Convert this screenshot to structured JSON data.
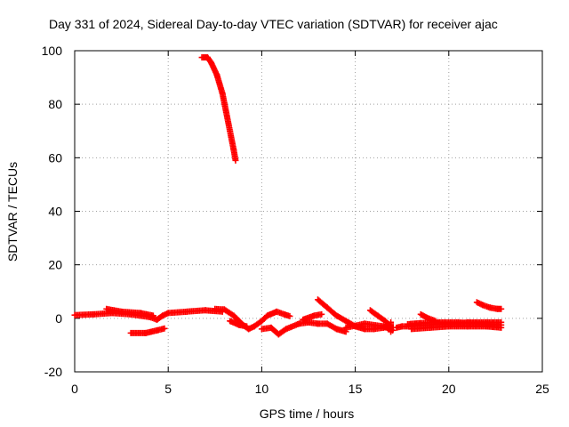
{
  "chart_data": {
    "type": "scatter",
    "title": "Day 331 of 2024, Sidereal Day-to-day VTEC variation (SDTVAR) for receiver ajac",
    "xlabel": "GPS time / hours",
    "ylabel": "SDTVAR / TECUs",
    "xlim": [
      0,
      25
    ],
    "ylim": [
      -20,
      100
    ],
    "xticks": [
      "0",
      "5",
      "10",
      "15",
      "20",
      "25"
    ],
    "yticks": [
      "-20",
      "0",
      "20",
      "40",
      "60",
      "80",
      "100"
    ],
    "grid": true,
    "marker": "plus",
    "series": [
      {
        "color": "#ff0000",
        "segments": [
          [
            [
              0,
              1.2
            ],
            [
              1,
              1.5
            ],
            [
              2,
              2
            ],
            [
              3,
              1.5
            ],
            [
              4,
              0.5
            ],
            [
              4.4,
              -0.5
            ],
            [
              4.7,
              1
            ],
            [
              5,
              2
            ],
            [
              6,
              2.5
            ],
            [
              7,
              3
            ],
            [
              7.9,
              2.5
            ]
          ],
          [
            [
              1.7,
              3.5
            ],
            [
              2.5,
              2.5
            ],
            [
              3.5,
              2
            ],
            [
              4.2,
              1
            ]
          ],
          [
            [
              3,
              -5.5
            ],
            [
              3.8,
              -5.5
            ],
            [
              4.4,
              -4.5
            ],
            [
              4.8,
              -3.8
            ]
          ],
          [
            [
              6.8,
              97.5
            ],
            [
              7.1,
              97.5
            ],
            [
              7.3,
              95.5
            ],
            [
              7.6,
              91
            ],
            [
              7.9,
              84
            ],
            [
              8.1,
              77
            ],
            [
              8.3,
              70
            ],
            [
              8.5,
              63
            ],
            [
              8.6,
              59
            ]
          ],
          [
            [
              7.5,
              3.5
            ],
            [
              8,
              3.3
            ],
            [
              8.5,
              1
            ],
            [
              9,
              -2.5
            ],
            [
              9.3,
              -4
            ],
            [
              9.6,
              -3
            ],
            [
              10,
              -1
            ],
            [
              10.3,
              1
            ],
            [
              10.8,
              2.5
            ],
            [
              11.2,
              1.5
            ],
            [
              11.5,
              0.8
            ]
          ],
          [
            [
              8.3,
              -1
            ],
            [
              8.8,
              -2.5
            ],
            [
              9.2,
              -3
            ]
          ],
          [
            [
              10,
              -4
            ],
            [
              10.5,
              -3.5
            ],
            [
              10.9,
              -6
            ],
            [
              11.3,
              -4
            ],
            [
              12,
              -2
            ],
            [
              12.5,
              -1.5
            ],
            [
              13,
              -2
            ],
            [
              13.5,
              -2
            ],
            [
              14,
              -4
            ],
            [
              14.5,
              -5
            ]
          ],
          [
            [
              12.2,
              -0.5
            ],
            [
              12.8,
              1
            ],
            [
              13.2,
              1.5
            ]
          ],
          [
            [
              13,
              7
            ],
            [
              13.5,
              4
            ],
            [
              14,
              1
            ],
            [
              14.5,
              -1
            ],
            [
              15,
              -3
            ],
            [
              15.5,
              -4
            ],
            [
              16,
              -4
            ],
            [
              16.5,
              -3.5
            ],
            [
              16.9,
              -3
            ]
          ],
          [
            [
              14.5,
              -3.5
            ],
            [
              15.5,
              -2
            ],
            [
              16.5,
              -3
            ],
            [
              17,
              -4.5
            ]
          ],
          [
            [
              15.8,
              3
            ],
            [
              16.2,
              1
            ],
            [
              16.6,
              -1
            ],
            [
              16.9,
              -3
            ]
          ],
          [
            [
              16.9,
              -1.5
            ],
            [
              16.9,
              -5
            ]
          ],
          [
            [
              17.2,
              -3.5
            ],
            [
              17.5,
              -3
            ],
            [
              18,
              -3
            ],
            [
              18.5,
              -2.5
            ],
            [
              19,
              -2.5
            ],
            [
              19.5,
              -2
            ],
            [
              20,
              -2
            ],
            [
              20.5,
              -2
            ],
            [
              21,
              -1.5
            ],
            [
              22,
              -1.5
            ],
            [
              22.8,
              -1.5
            ]
          ],
          [
            [
              17.8,
              -2.2
            ],
            [
              18.5,
              -1.8
            ],
            [
              19.5,
              -1.5
            ],
            [
              20.5,
              -1.5
            ],
            [
              21.5,
              -2
            ],
            [
              22.8,
              -2.5
            ]
          ],
          [
            [
              18,
              -4
            ],
            [
              19,
              -3.5
            ],
            [
              20,
              -3
            ],
            [
              21,
              -3
            ],
            [
              22,
              -3
            ],
            [
              22.8,
              -3.5
            ]
          ],
          [
            [
              18.5,
              1.5
            ],
            [
              18.9,
              0
            ],
            [
              19.3,
              -1
            ]
          ],
          [
            [
              21.5,
              6
            ],
            [
              21.8,
              5
            ],
            [
              22.2,
              4
            ],
            [
              22.6,
              3.5
            ],
            [
              22.8,
              3.5
            ]
          ]
        ]
      }
    ]
  }
}
